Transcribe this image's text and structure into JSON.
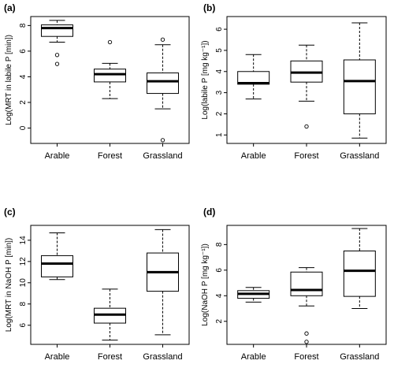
{
  "chart_data": [
    {
      "type": "boxplot",
      "panel_label": "(a)",
      "ylabel": "Log(MRT in labile P [min])",
      "categories": [
        "Arable",
        "Forest",
        "Grassland"
      ],
      "ylim": [
        -1.2,
        8.7
      ],
      "yticks": [
        0,
        2,
        4,
        6,
        8
      ],
      "boxes": [
        {
          "whisker_low": 6.7,
          "q1": 7.15,
          "median": 7.8,
          "q3": 8.05,
          "whisker_high": 8.4,
          "outliers": [
            5.7,
            5.0
          ]
        },
        {
          "whisker_low": 2.3,
          "q1": 3.6,
          "median": 4.2,
          "q3": 4.6,
          "whisker_high": 5.05,
          "outliers": [
            6.7
          ]
        },
        {
          "whisker_low": 1.5,
          "q1": 2.7,
          "median": 3.65,
          "q3": 4.3,
          "whisker_high": 6.5,
          "outliers": [
            6.9,
            -0.95
          ]
        }
      ]
    },
    {
      "type": "boxplot",
      "panel_label": "(b)",
      "ylabel": "Log(labile P [mg kg⁻¹])",
      "categories": [
        "Arable",
        "Forest",
        "Grassland"
      ],
      "ylim": [
        0.6,
        6.6
      ],
      "yticks": [
        1,
        2,
        3,
        4,
        5,
        6
      ],
      "boxes": [
        {
          "whisker_low": 2.7,
          "q1": 3.4,
          "median": 3.45,
          "q3": 4.0,
          "whisker_high": 4.8,
          "outliers": []
        },
        {
          "whisker_low": 2.6,
          "q1": 3.5,
          "median": 3.95,
          "q3": 4.5,
          "whisker_high": 5.25,
          "outliers": [
            1.4
          ]
        },
        {
          "whisker_low": 0.85,
          "q1": 2.0,
          "median": 3.55,
          "q3": 4.55,
          "whisker_high": 6.3,
          "outliers": []
        }
      ]
    },
    {
      "type": "boxplot",
      "panel_label": "(c)",
      "ylabel": "Log(MRT in NaOH P [min])",
      "categories": [
        "Arable",
        "Forest",
        "Grassland"
      ],
      "ylim": [
        4.2,
        15.4
      ],
      "yticks": [
        6,
        8,
        10,
        12,
        14
      ],
      "boxes": [
        {
          "whisker_low": 10.3,
          "q1": 10.55,
          "median": 11.8,
          "q3": 12.55,
          "whisker_high": 14.7,
          "outliers": []
        },
        {
          "whisker_low": 4.6,
          "q1": 6.2,
          "median": 7.0,
          "q3": 7.6,
          "whisker_high": 9.4,
          "outliers": []
        },
        {
          "whisker_low": 5.1,
          "q1": 9.2,
          "median": 11.0,
          "q3": 12.8,
          "whisker_high": 15.0,
          "outliers": []
        }
      ]
    },
    {
      "type": "boxplot",
      "panel_label": "(d)",
      "ylabel": "Log(NaOH P [mg kg⁻¹])",
      "categories": [
        "Arable",
        "Forest",
        "Grassland"
      ],
      "ylim": [
        0.2,
        9.5
      ],
      "yticks": [
        2,
        4,
        6,
        8
      ],
      "boxes": [
        {
          "whisker_low": 3.5,
          "q1": 3.8,
          "median": 4.15,
          "q3": 4.4,
          "whisker_high": 4.65,
          "outliers": []
        },
        {
          "whisker_low": 3.2,
          "q1": 4.0,
          "median": 4.45,
          "q3": 5.85,
          "whisker_high": 6.2,
          "outliers": [
            1.05,
            0.4
          ]
        },
        {
          "whisker_low": 3.0,
          "q1": 3.95,
          "median": 5.95,
          "q3": 7.5,
          "whisker_high": 9.25,
          "outliers": []
        }
      ]
    }
  ]
}
